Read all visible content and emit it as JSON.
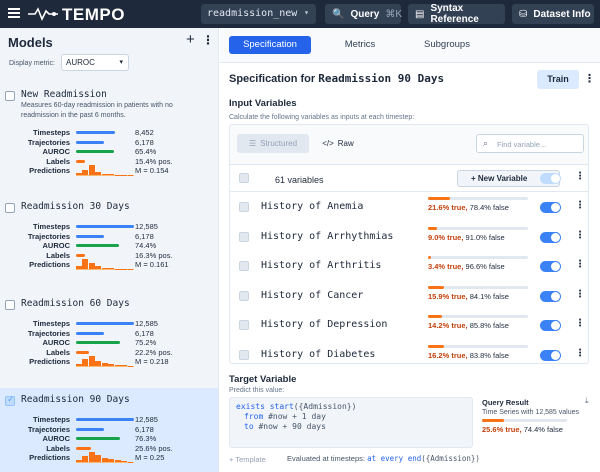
{
  "app": {
    "name": "TEMPO"
  },
  "topbar": {
    "dataset": "readmission_new",
    "query_label": "Query",
    "query_shortcut": "⌘K",
    "syntax_label": "Syntax Reference",
    "dataset_info_label": "Dataset Info"
  },
  "sidebar": {
    "title": "Models",
    "add_label": "+",
    "display_metric_label": "Display metric:",
    "display_metric_value": "AUROC",
    "metric_labels": [
      "Timesteps",
      "Trajectories",
      "AUROC",
      "Labels",
      "Predictions"
    ],
    "models": [
      {
        "title": "New Readmission",
        "description": "Measures 60-day readmission in patients with no readmission in the past 6 months.",
        "selected": false,
        "timesteps": "8,452",
        "trajectories": "6,178",
        "auroc": "65.4%",
        "labels": "15.4% pos.",
        "predictions": "M = 0.154",
        "timesteps_frac": 0.67,
        "trajectories_frac": 0.49,
        "auroc_frac": 0.654,
        "labels_frac": 0.154,
        "hist": [
          0.2,
          0.5,
          1.0,
          0.35,
          0.15,
          0.08,
          0.05,
          0.03,
          0.02
        ]
      },
      {
        "title": "Readmission 30 Days",
        "description": "",
        "selected": false,
        "timesteps": "12,585",
        "trajectories": "6,178",
        "auroc": "74.4%",
        "labels": "16.3% pos.",
        "predictions": "M = 0.161",
        "timesteps_frac": 1.0,
        "trajectories_frac": 0.49,
        "auroc_frac": 0.744,
        "labels_frac": 0.163,
        "hist": [
          0.3,
          1.0,
          0.6,
          0.3,
          0.15,
          0.08,
          0.05,
          0.03,
          0.02
        ]
      },
      {
        "title": "Readmission 60 Days",
        "description": "",
        "selected": false,
        "timesteps": "12,585",
        "trajectories": "6,178",
        "auroc": "75.2%",
        "labels": "22.2% pos.",
        "predictions": "M = 0.218",
        "timesteps_frac": 1.0,
        "trajectories_frac": 0.49,
        "auroc_frac": 0.752,
        "labels_frac": 0.222,
        "hist": [
          0.25,
          0.7,
          1.0,
          0.55,
          0.3,
          0.18,
          0.1,
          0.06,
          0.03
        ]
      },
      {
        "title": "Readmission 90 Days",
        "description": "",
        "selected": true,
        "timesteps": "12,585",
        "trajectories": "6,178",
        "auroc": "76.3%",
        "labels": "25.6% pos.",
        "predictions": "M = 0.25",
        "timesteps_frac": 1.0,
        "trajectories_frac": 0.49,
        "auroc_frac": 0.763,
        "labels_frac": 0.256,
        "hist": [
          0.2,
          0.6,
          1.0,
          0.7,
          0.45,
          0.3,
          0.18,
          0.1,
          0.05
        ]
      }
    ]
  },
  "main": {
    "tabs": [
      {
        "label": "Specification",
        "active": true
      },
      {
        "label": "Metrics",
        "active": false
      },
      {
        "label": "Subgroups",
        "active": false
      }
    ],
    "spec_title_prefix": "Specification for",
    "spec_title_model": "Readmission 90 Days",
    "train_label": "Train",
    "input_vars": {
      "heading": "Input Variables",
      "subtitle": "Calculate the following variables as inputs at each timestep:",
      "structured_label": "Structured",
      "raw_label": "Raw",
      "find_placeholder": "Find variable...",
      "count_label": "61 variables",
      "new_variable_label": "New Variable",
      "variables": [
        {
          "name": "History of Anemia",
          "true_pct": "21.6% true,",
          "false_pct": "78.4% false",
          "true_frac": 0.216
        },
        {
          "name": "History of Arrhythmias",
          "true_pct": "9.0% true,",
          "false_pct": "91.0% false",
          "true_frac": 0.09
        },
        {
          "name": "History of Arthritis",
          "true_pct": "3.4% true,",
          "false_pct": "96.6% false",
          "true_frac": 0.034
        },
        {
          "name": "History of Cancer",
          "true_pct": "15.9% true,",
          "false_pct": "84.1% false",
          "true_frac": 0.159
        },
        {
          "name": "History of Depression",
          "true_pct": "14.2% true,",
          "false_pct": "85.8% false",
          "true_frac": 0.142
        },
        {
          "name": "History of Diabetes",
          "true_pct": "16.2% true,",
          "false_pct": "83.8% false",
          "true_frac": 0.162
        }
      ]
    },
    "target": {
      "heading": "Target Variable",
      "subtitle": "Predict this value:",
      "code_line1_kw": "exists start",
      "code_line1_rest": "({Admission})",
      "code_line2_kw": "from",
      "code_line2_rest": "#now + 1 day",
      "code_line3_kw": "to",
      "code_line3_rest": "#now + 90 days",
      "query_result_title": "Query Result",
      "query_result_subtitle": "Time Series with 12,585 values",
      "query_result_true": "25.6% true,",
      "query_result_false": "74.4% false",
      "query_result_true_frac": 0.256,
      "template_label": "+ Template",
      "eval_prefix": "Evaluated at timesteps:",
      "eval_kw": "at every end",
      "eval_rest": "({Admission})"
    }
  },
  "colors": {
    "blue_bar": "#3b82f6",
    "green_bar": "#16a34a",
    "orange": "#f97316",
    "accent": "#2563eb"
  }
}
